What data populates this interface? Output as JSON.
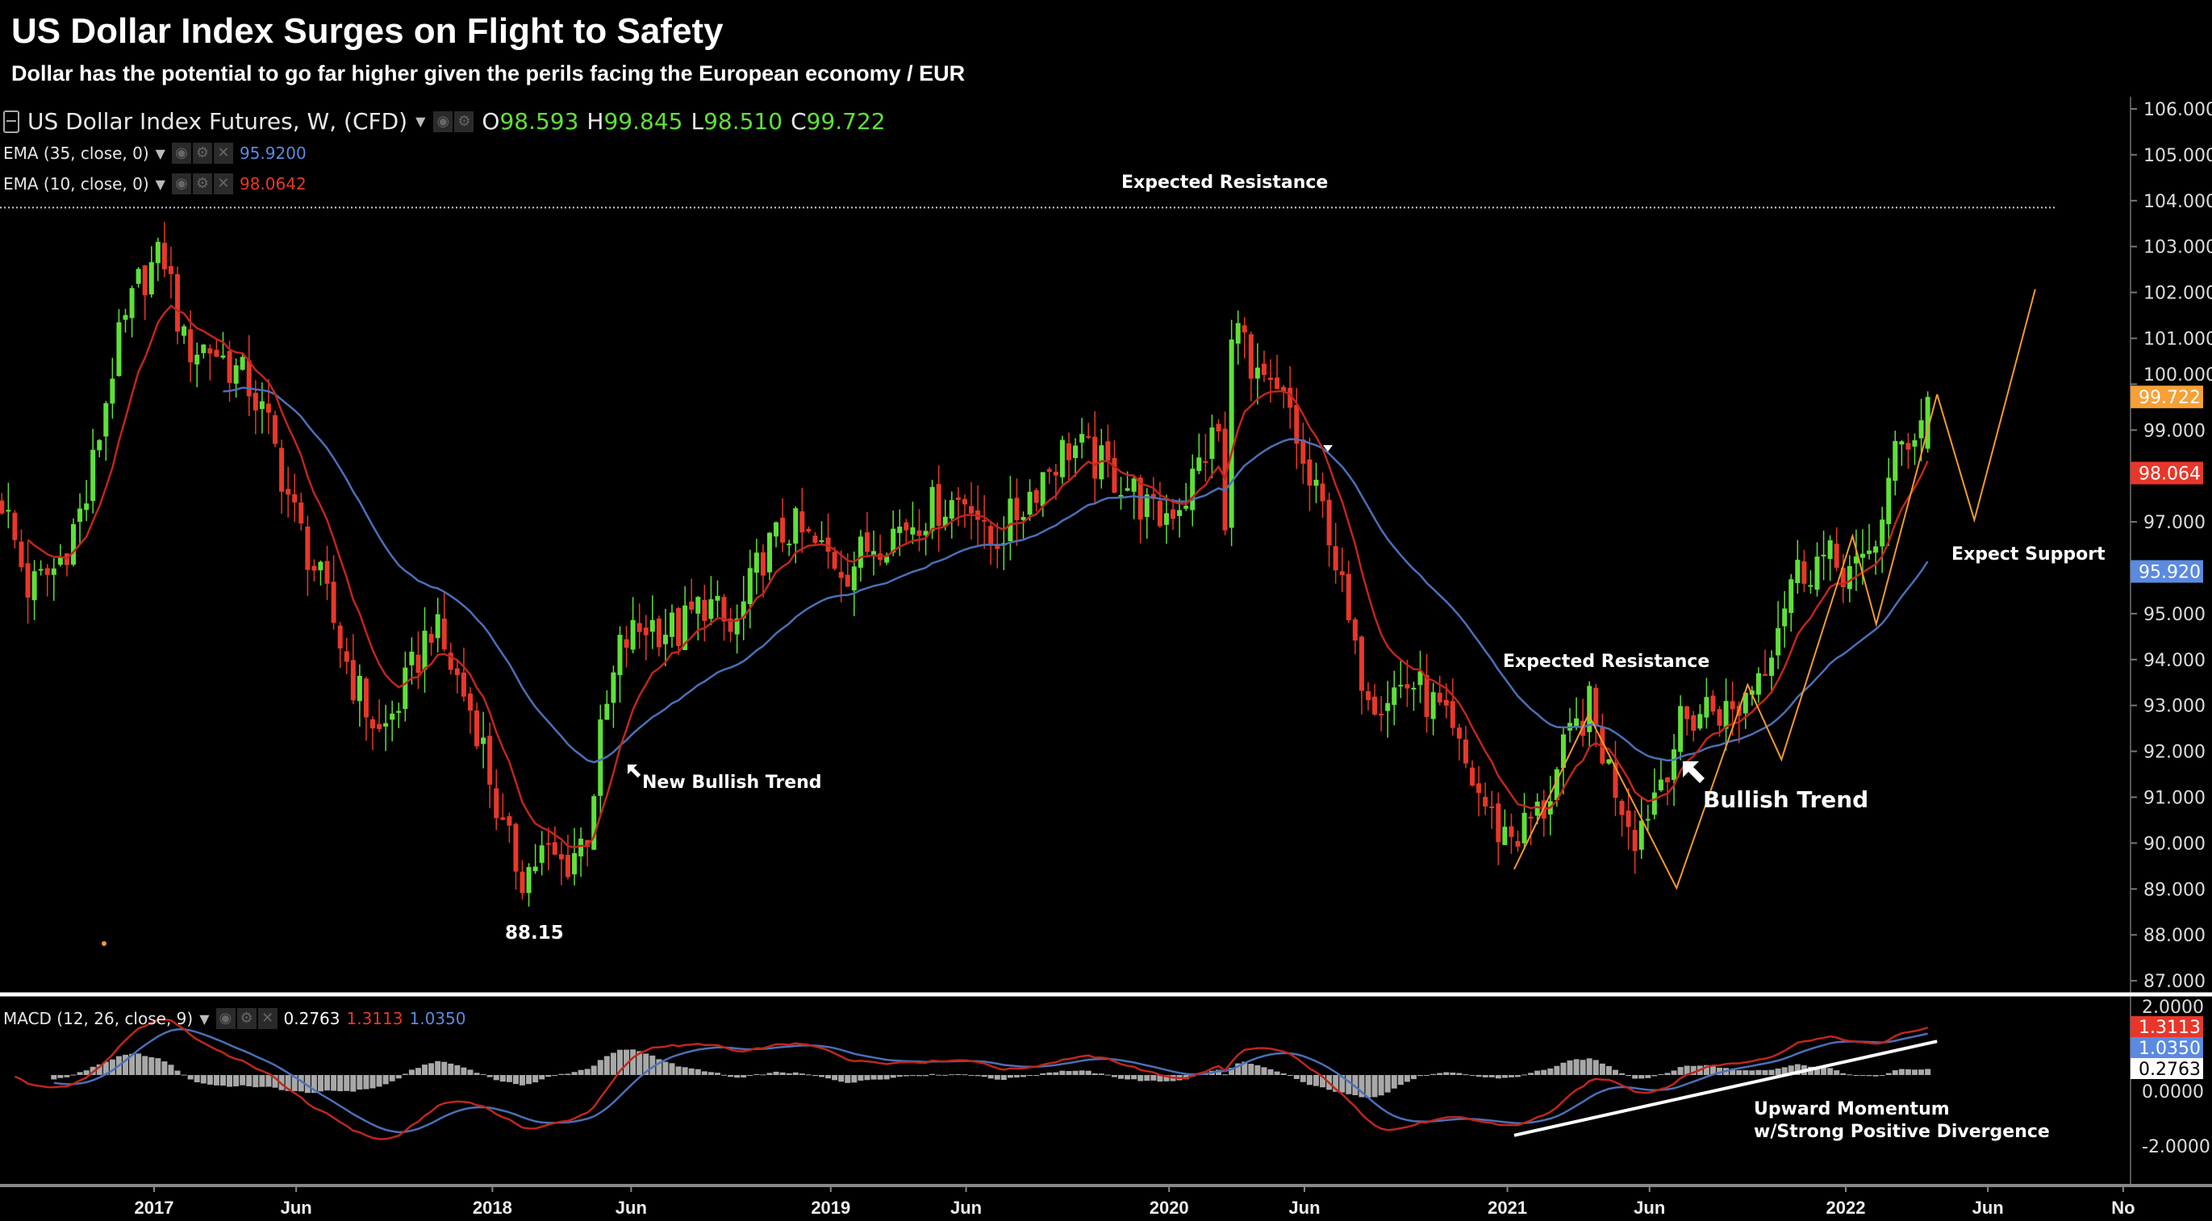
{
  "header": {
    "title": "US Dollar Index Surges on Flight to Safety",
    "subtitle": "Dollar has the potential to go far higher given the perils facing the European economy / EUR"
  },
  "legend": {
    "symbol": "US Dollar Index Futures, W, (CFD)",
    "o_label": "O",
    "o": "98.593",
    "h_label": "H",
    "h": "99.845",
    "l_label": "L",
    "l": "98.510",
    "c_label": "C",
    "c": "99.722",
    "ema35_label": "EMA (35, close, 0)",
    "ema35_value": "95.9200",
    "ema10_label": "EMA (10, close, 0)",
    "ema10_value": "98.0642",
    "macd_label": "MACD (12, 26, close, 9)",
    "macd_hist": "0.2763",
    "macd_line": "1.3113",
    "macd_signal": "1.0350"
  },
  "annotations": {
    "top_resistance": "Expected Resistance",
    "low": "88.15",
    "new_bullish": "New Bullish Trend",
    "resistance_2021": "Expected Resistance",
    "bullish": "Bullish Trend",
    "support": "Expect Support",
    "momentum_1": "Upward Momentum",
    "momentum_2": "w/Strong Positive Divergence"
  },
  "colors": {
    "up": "#5fe03a",
    "down": "#e8372a",
    "ema10": "#c0261c",
    "ema35": "#4a70b8",
    "projection": "#f29a2e",
    "label_close": "#f7a035",
    "label_ema10": "#e8372a",
    "label_ema35": "#5b8ae0"
  },
  "chart_data": {
    "type": "candlestick",
    "title": "US Dollar Index Futures, W",
    "ylim": [
      87,
      106
    ],
    "y_ticks": [
      "106.000",
      "105.000",
      "104.000",
      "103.000",
      "102.000",
      "101.000",
      "100.000",
      "99.000",
      "97.000",
      "95.000",
      "94.000",
      "93.000",
      "92.000",
      "91.000",
      "90.000",
      "89.000",
      "88.000",
      "87.000"
    ],
    "y_tick_values": [
      106,
      105,
      104,
      103,
      102,
      101,
      100,
      99,
      97,
      95,
      94,
      93,
      92,
      91,
      90,
      89,
      88,
      87
    ],
    "x_ticks": [
      {
        "label": "2017",
        "t": 2017.0
      },
      {
        "label": "Jun",
        "t": 2017.42
      },
      {
        "label": "2018",
        "t": 2018.0
      },
      {
        "label": "Jun",
        "t": 2018.41
      },
      {
        "label": "2019",
        "t": 2019.0
      },
      {
        "label": "Jun",
        "t": 2019.4
      },
      {
        "label": "2020",
        "t": 2020.0
      },
      {
        "label": "Jun",
        "t": 2020.4
      },
      {
        "label": "2021",
        "t": 2021.0
      },
      {
        "label": "Jun",
        "t": 2021.42
      },
      {
        "label": "2022",
        "t": 2022.0
      },
      {
        "label": "Jun",
        "t": 2022.42
      },
      {
        "label": "No",
        "t": 2022.82
      }
    ],
    "approx_close_path": [
      [
        2016.55,
        97.5
      ],
      [
        2016.63,
        95.5
      ],
      [
        2016.71,
        96
      ],
      [
        2016.8,
        97.5
      ],
      [
        2016.88,
        100.5
      ],
      [
        2016.96,
        102.3
      ],
      [
        2017.03,
        102.8
      ],
      [
        2017.09,
        100.8
      ],
      [
        2017.17,
        100.8
      ],
      [
        2017.28,
        100
      ],
      [
        2017.34,
        99
      ],
      [
        2017.42,
        97
      ],
      [
        2017.5,
        95.5
      ],
      [
        2017.59,
        93.5
      ],
      [
        2017.67,
        92.3
      ],
      [
        2017.75,
        93.5
      ],
      [
        2017.82,
        94.8
      ],
      [
        2017.9,
        93.5
      ],
      [
        2017.96,
        92.5
      ],
      [
        2018.03,
        90.2
      ],
      [
        2018.09,
        89.3
      ],
      [
        2018.15,
        89.8
      ],
      [
        2018.21,
        89.5
      ],
      [
        2018.28,
        90.2
      ],
      [
        2018.32,
        92.3
      ],
      [
        2018.38,
        94.3
      ],
      [
        2018.46,
        94.8
      ],
      [
        2018.55,
        94.6
      ],
      [
        2018.63,
        95.3
      ],
      [
        2018.71,
        94.5
      ],
      [
        2018.8,
        96.3
      ],
      [
        2018.88,
        96.9
      ],
      [
        2018.96,
        96.4
      ],
      [
        2019.05,
        96
      ],
      [
        2019.13,
        96.6
      ],
      [
        2019.21,
        96.9
      ],
      [
        2019.3,
        97.3
      ],
      [
        2019.42,
        97.6
      ],
      [
        2019.46,
        96.4
      ],
      [
        2019.55,
        97.2
      ],
      [
        2019.63,
        98.1
      ],
      [
        2019.71,
        98.7
      ],
      [
        2019.8,
        98.2
      ],
      [
        2019.88,
        97.8
      ],
      [
        2019.96,
        97
      ],
      [
        2020.05,
        97.6
      ],
      [
        2020.11,
        98.6
      ],
      [
        2020.15,
        99
      ],
      [
        2020.17,
        96
      ],
      [
        2020.19,
        102.5
      ],
      [
        2020.24,
        100
      ],
      [
        2020.3,
        99.8
      ],
      [
        2020.36,
        99.4
      ],
      [
        2020.4,
        98
      ],
      [
        2020.47,
        97
      ],
      [
        2020.55,
        94
      ],
      [
        2020.61,
        93.2
      ],
      [
        2020.72,
        93.5
      ],
      [
        2020.8,
        92.8
      ],
      [
        2020.88,
        91.6
      ],
      [
        2020.97,
        90.3
      ],
      [
        2021.03,
        90.2
      ],
      [
        2021.11,
        90.8
      ],
      [
        2021.17,
        92
      ],
      [
        2021.24,
        93
      ],
      [
        2021.3,
        91.6
      ],
      [
        2021.38,
        90.2
      ],
      [
        2021.45,
        91.4
      ],
      [
        2021.51,
        92.5
      ],
      [
        2021.59,
        93
      ],
      [
        2021.67,
        92.8
      ],
      [
        2021.76,
        94
      ],
      [
        2021.84,
        95.8
      ],
      [
        2021.92,
        96.2
      ],
      [
        2021.99,
        96
      ],
      [
        2022.05,
        95.9
      ],
      [
        2022.09,
        96.7
      ],
      [
        2022.15,
        98.5
      ],
      [
        2022.22,
        99.2
      ],
      [
        2022.25,
        99.722
      ]
    ],
    "last_bar": {
      "open": 98.593,
      "high": 99.845,
      "low": 98.51,
      "close": 99.722
    },
    "resistance_level": 103.85,
    "projection_2021": [
      [
        2021.02,
        89.43
      ],
      [
        2021.24,
        92.8
      ],
      [
        2021.5,
        89.02
      ],
      [
        2021.71,
        93.45
      ],
      [
        2021.81,
        91.82
      ],
      [
        2022.02,
        96.69
      ],
      [
        2022.09,
        94.77
      ],
      [
        2022.27,
        99.78
      ]
    ],
    "projection_forecast": [
      [
        2022.27,
        99.78
      ],
      [
        2022.38,
        97.04
      ],
      [
        2022.56,
        102.07
      ]
    ],
    "price_labels": [
      {
        "text": "99.722",
        "value": 99.722,
        "color": "label_close"
      },
      {
        "text": "98.064",
        "value": 98.064,
        "color": "label_ema10"
      },
      {
        "text": "95.920",
        "value": 95.92,
        "color": "label_ema35"
      }
    ],
    "macd": {
      "ylim": [
        -2.6,
        2.2
      ],
      "y_ticks": [
        "2.0000",
        "0.0000",
        "-2.0000"
      ],
      "y_tick_values": [
        2,
        0,
        -2
      ],
      "labels": [
        {
          "text": "1.3113",
          "color": "#e8372a",
          "fg": "#fff"
        },
        {
          "text": "1.0350",
          "color": "#5b8ae0",
          "fg": "#fff"
        },
        {
          "text": "0.2763",
          "color": "#ffffff",
          "fg": "#000"
        }
      ],
      "divergence_line": [
        [
          2021.02,
          -1.7
        ],
        [
          2022.27,
          0.95
        ]
      ]
    }
  }
}
